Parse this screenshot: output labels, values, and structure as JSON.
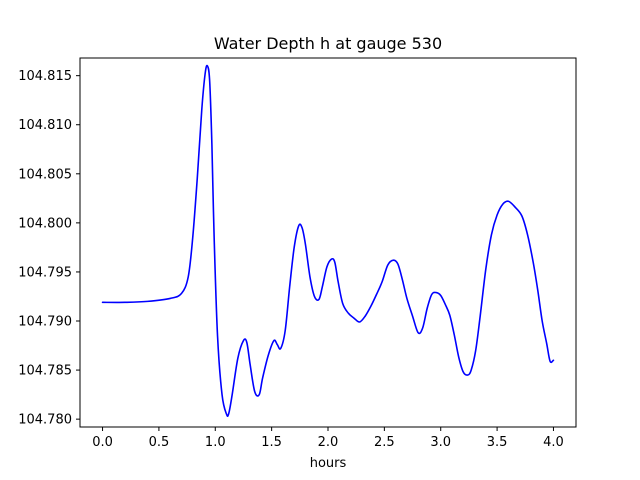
{
  "chart_data": {
    "type": "line",
    "title": "Water Depth h at gauge 530",
    "xlabel": "hours",
    "ylabel": "",
    "xlim": [
      -0.2,
      4.2
    ],
    "ylim": [
      104.7792,
      104.8168
    ],
    "xticks": [
      0.0,
      0.5,
      1.0,
      1.5,
      2.0,
      2.5,
      3.0,
      3.5,
      4.0
    ],
    "xtick_labels": [
      "0.0",
      "0.5",
      "1.0",
      "1.5",
      "2.0",
      "2.5",
      "3.0",
      "3.5",
      "4.0"
    ],
    "yticks": [
      104.78,
      104.785,
      104.79,
      104.795,
      104.8,
      104.805,
      104.81,
      104.815
    ],
    "ytick_labels": [
      "104.780",
      "104.785",
      "104.790",
      "104.795",
      "104.800",
      "104.805",
      "104.810",
      "104.815"
    ],
    "grid": false,
    "series": [
      {
        "color": "#0000ff",
        "x": [
          0.0,
          0.2,
          0.4,
          0.6,
          0.7,
          0.76,
          0.8,
          0.84,
          0.88,
          0.91,
          0.93,
          0.95,
          0.97,
          0.99,
          1.02,
          1.06,
          1.1,
          1.12,
          1.15,
          1.2,
          1.25,
          1.28,
          1.31,
          1.35,
          1.39,
          1.42,
          1.47,
          1.52,
          1.55,
          1.58,
          1.62,
          1.66,
          1.7,
          1.74,
          1.77,
          1.8,
          1.84,
          1.88,
          1.92,
          1.95,
          1.99,
          2.03,
          2.06,
          2.09,
          2.13,
          2.18,
          2.23,
          2.28,
          2.33,
          2.38,
          2.43,
          2.48,
          2.53,
          2.58,
          2.62,
          2.66,
          2.7,
          2.75,
          2.8,
          2.84,
          2.88,
          2.92,
          2.96,
          3.0,
          3.04,
          3.08,
          3.12,
          3.16,
          3.2,
          3.24,
          3.27,
          3.31,
          3.35,
          3.4,
          3.45,
          3.5,
          3.55,
          3.6,
          3.66,
          3.72,
          3.77,
          3.82,
          3.86,
          3.9,
          3.94,
          3.97,
          4.0
        ],
        "y": [
          104.7919,
          104.7919,
          104.792,
          104.7923,
          104.7928,
          104.7945,
          104.7985,
          104.8045,
          104.8115,
          104.8152,
          104.816,
          104.8145,
          104.808,
          104.7985,
          104.7885,
          104.7825,
          104.7805,
          104.7806,
          104.7825,
          104.7862,
          104.788,
          104.7878,
          104.7855,
          104.7828,
          104.7825,
          104.7842,
          104.7865,
          104.788,
          104.7876,
          104.7872,
          104.789,
          104.7935,
          104.7975,
          104.7997,
          104.7995,
          104.7978,
          104.7945,
          104.7925,
          104.7922,
          104.7935,
          104.7955,
          104.7963,
          104.796,
          104.794,
          104.7918,
          104.7908,
          104.7903,
          104.7899,
          104.7905,
          104.7915,
          104.7927,
          104.794,
          104.7957,
          104.7962,
          104.7958,
          104.7942,
          104.7923,
          104.7905,
          104.7888,
          104.7893,
          104.7913,
          104.7927,
          104.7929,
          104.7926,
          104.7917,
          104.7906,
          104.7886,
          104.7863,
          104.7848,
          104.7845,
          104.785,
          104.787,
          104.7905,
          104.7953,
          104.7988,
          104.8008,
          104.8019,
          104.8022,
          104.8016,
          104.8007,
          104.7988,
          104.796,
          104.7932,
          104.79,
          104.7877,
          104.7859,
          104.786
        ]
      }
    ]
  }
}
